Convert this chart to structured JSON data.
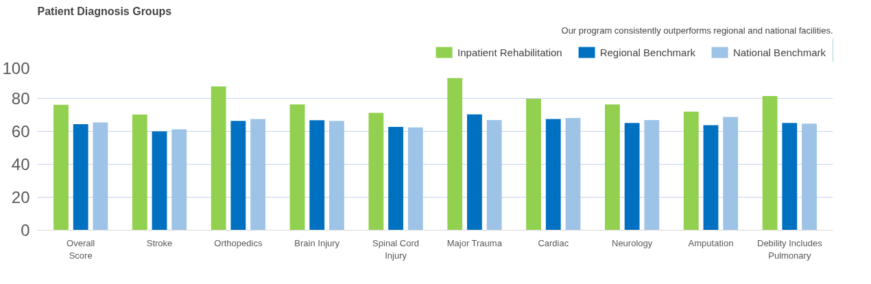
{
  "chart_data": {
    "type": "bar",
    "title": "Patient Diagnosis Groups",
    "subtitle": "Our program consistently outperforms regional and national facilities.",
    "categories": [
      "Overall Score",
      "Stroke",
      "Orthopedics",
      "Brain Injury",
      "Spinal Cord Injury",
      "Major Trauma",
      "Cardiac",
      "Neurology",
      "Amputation",
      "Debility Includes Pulmonary"
    ],
    "series": [
      {
        "name": "Inpatient Rehabilitation",
        "color": "#92d050",
        "values": [
          76.1,
          70.2,
          87.3,
          76.4,
          71.2,
          92.4,
          79.8,
          76.4,
          72.0,
          81.5
        ]
      },
      {
        "name": "Regional Benchmark",
        "color": "#0070c0",
        "values": [
          64.4,
          60.0,
          66.4,
          66.8,
          62.7,
          70.3,
          67.5,
          65.1,
          63.7,
          65.1
        ]
      },
      {
        "name": "National Benchmark",
        "color": "#9dc3e6",
        "values": [
          65.4,
          61.2,
          67.5,
          66.4,
          62.4,
          66.9,
          68.1,
          66.9,
          68.8,
          64.7
        ]
      }
    ],
    "ylim": [
      0,
      100
    ],
    "yticks": [
      0,
      20,
      40,
      60,
      80,
      100
    ],
    "grid": "y",
    "legend": "top right"
  }
}
